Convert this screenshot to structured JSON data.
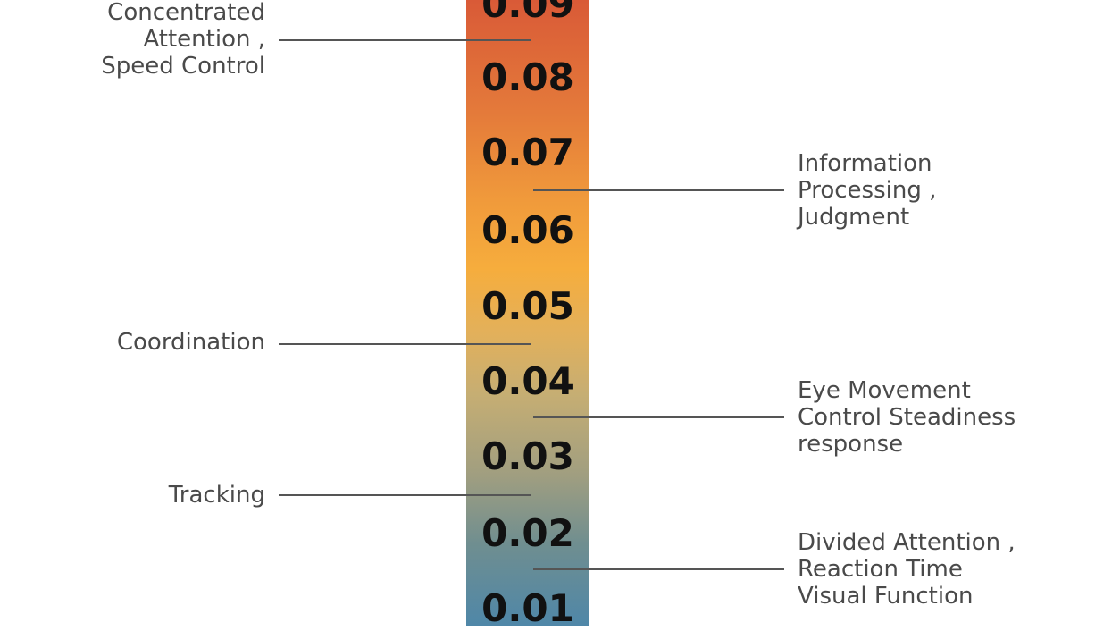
{
  "scale": {
    "ticks": [
      "0.09",
      "0.08",
      "0.07",
      "0.06",
      "0.05",
      "0.04",
      "0.03",
      "0.02",
      "0.01"
    ]
  },
  "left_labels": [
    {
      "lines": [
        "Concentrated",
        "Attention ,",
        "Speed Control"
      ]
    },
    {
      "lines": [
        "Coordination"
      ]
    },
    {
      "lines": [
        "Tracking"
      ]
    }
  ],
  "right_labels": [
    {
      "lines": [
        "Information",
        "Processing ,",
        "Judgment"
      ]
    },
    {
      "lines": [
        "Eye Movement",
        "Control Steadiness",
        "response"
      ]
    },
    {
      "lines": [
        "Divided Attention ,",
        "Reaction Time",
        "Visual Function"
      ]
    }
  ]
}
